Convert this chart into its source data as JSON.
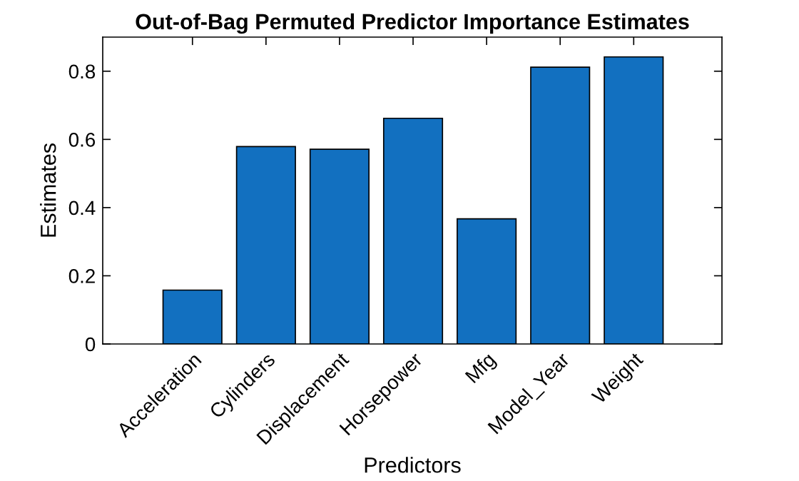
{
  "chart_data": {
    "type": "bar",
    "title": "Out-of-Bag Permuted Predictor Importance Estimates",
    "xlabel": "Predictors",
    "ylabel": "Estimates",
    "categories": [
      "Acceleration",
      "Cylinders",
      "Displacement",
      "Horsepower",
      "Mfg",
      "Model_Year",
      "Weight"
    ],
    "values": [
      0.158,
      0.579,
      0.571,
      0.662,
      0.367,
      0.812,
      0.842
    ],
    "color": "#1270c0",
    "ylim": [
      0,
      0.9
    ],
    "yticks": [
      0,
      0.2,
      0.4,
      0.6,
      0.8
    ],
    "grid": false,
    "legend": false
  }
}
